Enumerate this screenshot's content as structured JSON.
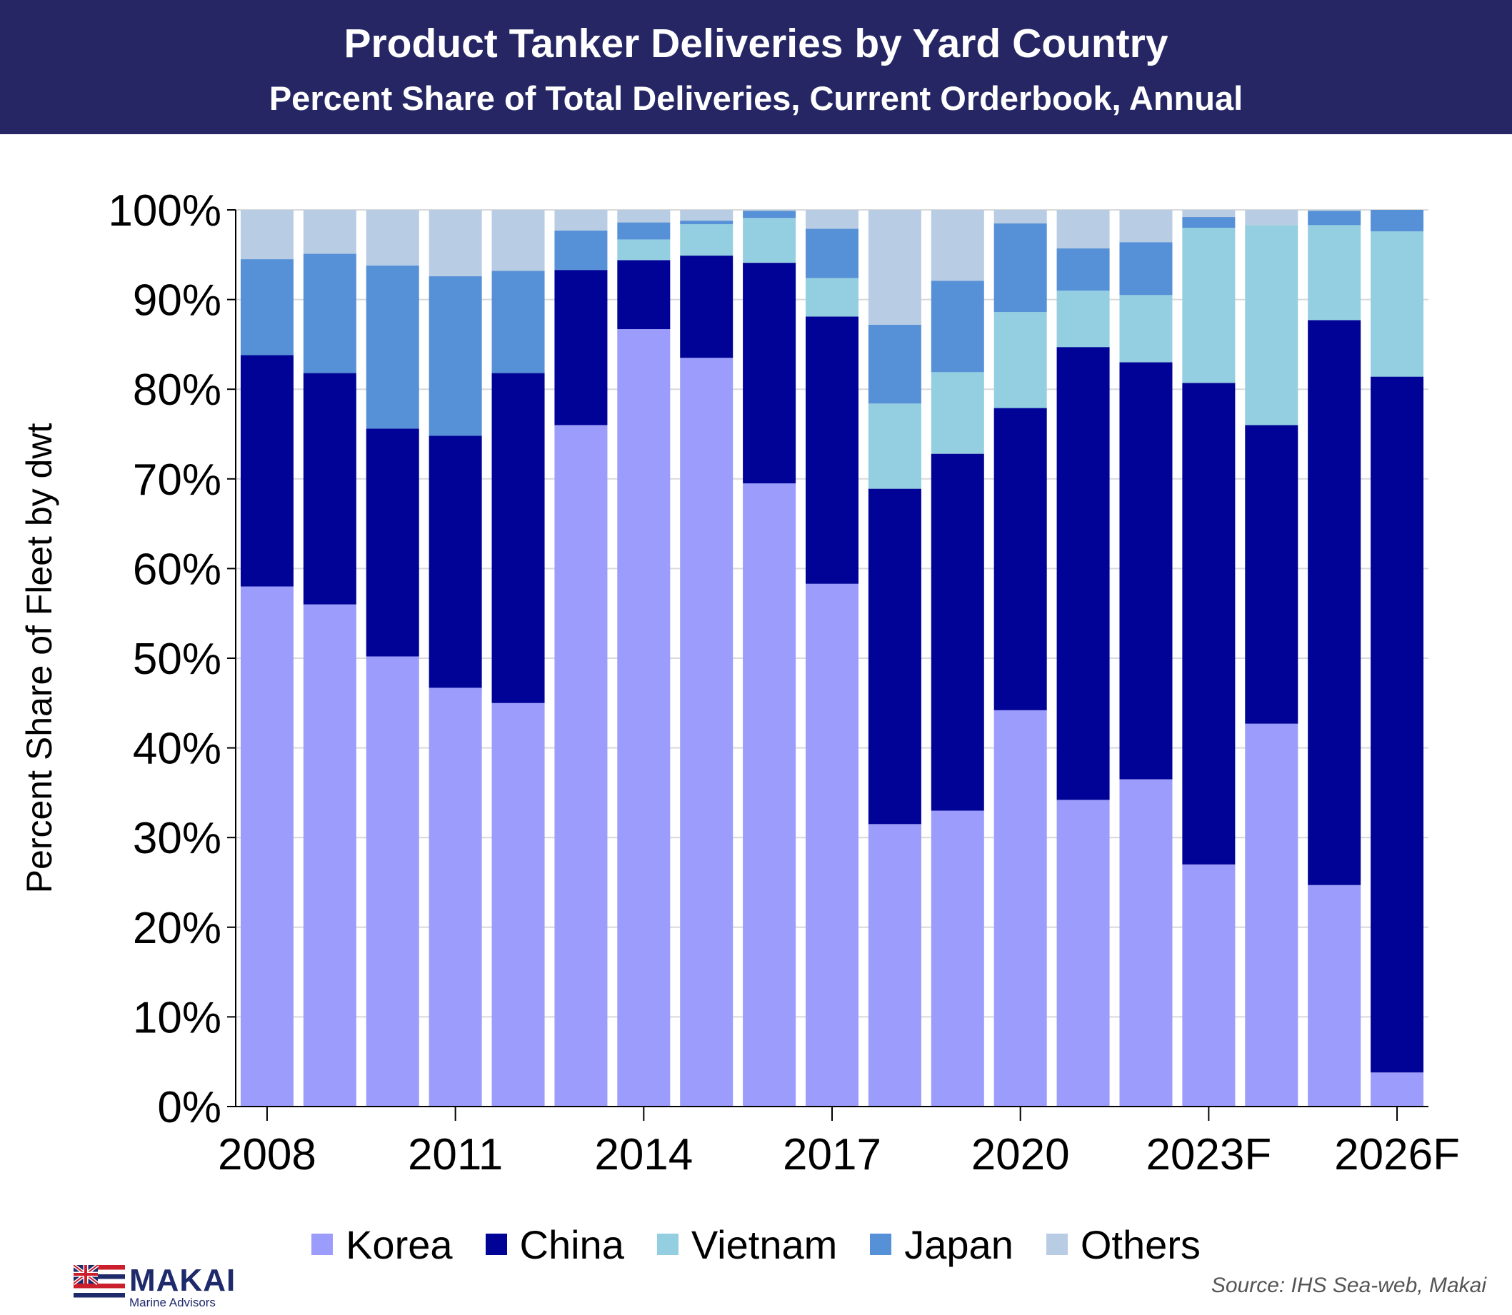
{
  "header": {
    "title": "Product Tanker Deliveries by Yard Country",
    "subtitle": "Percent Share of Total Deliveries, Current Orderbook, Annual"
  },
  "chart_data": {
    "type": "bar",
    "stacked": true,
    "ylabel": "Percent Share of Fleet by dwt",
    "ylim": [
      0,
      100
    ],
    "yticks": [
      "0%",
      "10%",
      "20%",
      "30%",
      "40%",
      "50%",
      "60%",
      "70%",
      "80%",
      "90%",
      "100%"
    ],
    "categories": [
      "2008",
      "2009",
      "2010",
      "2011",
      "2012",
      "2013",
      "2014",
      "2015",
      "2016",
      "2017",
      "2018",
      "2019",
      "2020",
      "2021",
      "2022",
      "2023F",
      "2024F",
      "2025F",
      "2026F"
    ],
    "xtick_labels": [
      "2008",
      "2011",
      "2014",
      "2017",
      "2020",
      "2023F",
      "2026F"
    ],
    "grid": true,
    "legend_position": "bottom",
    "series": [
      {
        "name": "Korea",
        "color": "#9b9cfb",
        "values": [
          58.0,
          56.0,
          50.2,
          46.7,
          45.0,
          76.0,
          86.7,
          83.5,
          69.5,
          58.3,
          31.5,
          33.0,
          44.2,
          34.2,
          36.5,
          27.0,
          42.7,
          24.7,
          3.8
        ]
      },
      {
        "name": "China",
        "color": "#000396",
        "values": [
          25.8,
          25.8,
          25.4,
          28.1,
          36.8,
          17.3,
          7.7,
          11.4,
          24.6,
          29.8,
          37.4,
          39.8,
          33.7,
          50.5,
          46.5,
          53.7,
          33.3,
          63.0,
          77.6
        ]
      },
      {
        "name": "Vietnam",
        "color": "#93cfe0",
        "values": [
          0,
          0,
          0,
          0,
          0,
          0,
          2.3,
          3.5,
          5.0,
          4.3,
          9.5,
          9.1,
          10.7,
          6.3,
          7.5,
          17.3,
          22.3,
          10.6,
          16.2
        ]
      },
      {
        "name": "Japan",
        "color": "#5690d6",
        "values": [
          10.7,
          13.3,
          18.2,
          17.8,
          11.4,
          4.4,
          1.9,
          0.4,
          0.8,
          5.5,
          8.8,
          10.2,
          9.9,
          4.7,
          5.9,
          1.2,
          0,
          1.6,
          2.4
        ]
      },
      {
        "name": "Others",
        "color": "#b8cce4",
        "values": [
          5.5,
          4.9,
          6.2,
          7.4,
          6.8,
          2.3,
          1.4,
          1.2,
          0.1,
          2.1,
          12.8,
          7.9,
          1.5,
          4.3,
          3.6,
          0.8,
          1.7,
          0.1,
          0
        ]
      }
    ]
  },
  "logo": {
    "name": "MAKAI",
    "sub": "Marine Advisors"
  },
  "source": "Source: IHS Sea-web, Makai"
}
